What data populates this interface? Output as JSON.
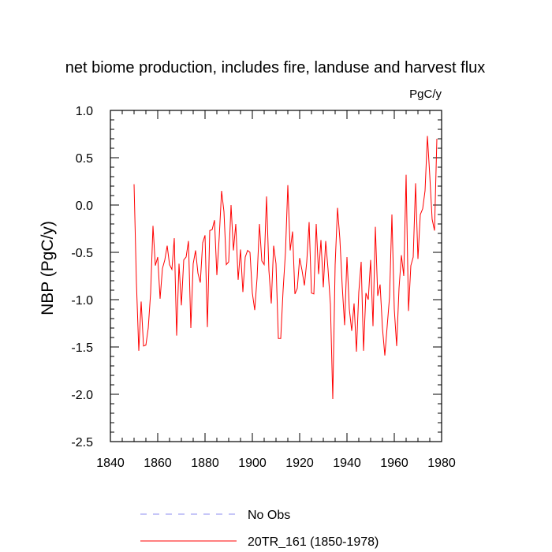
{
  "chart_data": {
    "type": "line",
    "title": "net biome production, includes fire, landuse and harvest flux",
    "units_label": "PgC/y",
    "ylabel": "NBP  (PgC/y)",
    "xlabel": "",
    "xlim": [
      1840,
      1980
    ],
    "ylim": [
      -2.5,
      1.0
    ],
    "x_ticks": [
      1840,
      1860,
      1880,
      1900,
      1920,
      1940,
      1960,
      1980
    ],
    "y_ticks": [
      -2.5,
      -2.0,
      -1.5,
      -1.0,
      -0.5,
      0.0,
      0.5,
      1.0
    ],
    "x_tick_labels": [
      "1840",
      "1860",
      "1880",
      "1900",
      "1920",
      "1940",
      "1960",
      "1980"
    ],
    "y_tick_labels": [
      "-2.5",
      "-2.0",
      "-1.5",
      "-1.0",
      "-0.5",
      "0.0",
      "0.5",
      "1.0"
    ],
    "grid": false,
    "legend_position": "bottom",
    "series": [
      {
        "name": "No Obs",
        "color": "#8c8cf0",
        "style": "dashed",
        "x": [],
        "values": []
      },
      {
        "name": "20TR_161 (1850-1978)",
        "color": "#ff0000",
        "style": "solid",
        "x": [
          1850,
          1851,
          1852,
          1853,
          1854,
          1855,
          1856,
          1857,
          1858,
          1859,
          1860,
          1861,
          1862,
          1863,
          1864,
          1865,
          1866,
          1867,
          1868,
          1869,
          1870,
          1871,
          1872,
          1873,
          1874,
          1875,
          1876,
          1877,
          1878,
          1879,
          1880,
          1881,
          1882,
          1883,
          1884,
          1885,
          1886,
          1887,
          1888,
          1889,
          1890,
          1891,
          1892,
          1893,
          1894,
          1895,
          1896,
          1897,
          1898,
          1899,
          1900,
          1901,
          1902,
          1903,
          1904,
          1905,
          1906,
          1907,
          1908,
          1909,
          1910,
          1911,
          1912,
          1913,
          1914,
          1915,
          1916,
          1917,
          1918,
          1919,
          1920,
          1921,
          1922,
          1923,
          1924,
          1925,
          1926,
          1927,
          1928,
          1929,
          1930,
          1931,
          1932,
          1933,
          1934,
          1935,
          1936,
          1937,
          1938,
          1939,
          1940,
          1941,
          1942,
          1943,
          1944,
          1945,
          1946,
          1947,
          1948,
          1949,
          1950,
          1951,
          1952,
          1953,
          1954,
          1955,
          1956,
          1957,
          1958,
          1959,
          1960,
          1961,
          1962,
          1963,
          1964,
          1965,
          1966,
          1967,
          1968,
          1969,
          1970,
          1971,
          1972,
          1973,
          1974,
          1975,
          1976,
          1977,
          1978
        ],
        "values": [
          0.22,
          -0.82,
          -1.54,
          -1.02,
          -1.49,
          -1.48,
          -1.3,
          -0.93,
          -0.22,
          -0.64,
          -0.55,
          -0.99,
          -0.67,
          -0.58,
          -0.43,
          -0.63,
          -0.68,
          -0.35,
          -1.38,
          -0.62,
          -1.06,
          -0.58,
          -0.55,
          -0.38,
          -1.3,
          -0.62,
          -0.48,
          -0.72,
          -0.82,
          -0.4,
          -0.32,
          -1.29,
          -0.27,
          -0.26,
          -0.16,
          -0.74,
          -0.34,
          0.15,
          -0.07,
          -0.63,
          -0.6,
          0.0,
          -0.48,
          -0.2,
          -0.79,
          -0.47,
          -0.92,
          -0.55,
          -0.48,
          -0.5,
          -0.93,
          -1.11,
          -0.77,
          -0.2,
          -0.59,
          -0.63,
          0.09,
          -0.69,
          -1.04,
          -0.43,
          -0.62,
          -1.41,
          -1.41,
          -0.9,
          -0.5,
          0.21,
          -0.48,
          -0.28,
          -0.94,
          -0.88,
          -0.56,
          -0.69,
          -0.85,
          -0.6,
          -0.18,
          -0.93,
          -0.94,
          -0.2,
          -0.73,
          -0.37,
          -0.87,
          -0.38,
          -0.68,
          -1.05,
          -2.05,
          -0.63,
          -0.03,
          -0.36,
          -0.86,
          -1.27,
          -0.55,
          -1.1,
          -1.33,
          -1.04,
          -1.55,
          -0.92,
          -0.6,
          -1.54,
          -0.93,
          -1.0,
          -0.58,
          -1.28,
          -0.23,
          -0.96,
          -0.84,
          -1.3,
          -1.59,
          -1.28,
          -0.97,
          -0.1,
          -1.1,
          -1.49,
          -0.88,
          -0.53,
          -0.75,
          0.32,
          -1.12,
          -0.64,
          -0.55,
          0.23,
          -0.57,
          -0.1,
          -0.04,
          0.15,
          0.73,
          0.31,
          -0.15,
          -0.27,
          0.7
        ]
      }
    ]
  }
}
